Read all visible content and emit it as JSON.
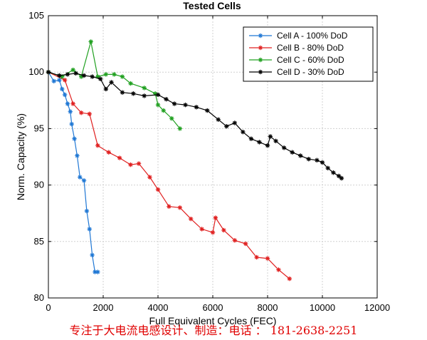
{
  "chart_data": {
    "type": "line",
    "title": "Tested Cells",
    "xlabel": "Full Equivalent Cycles (FEC)",
    "ylabel": "Norm. Capacity (%)",
    "xlim": [
      0,
      12000
    ],
    "ylim": [
      80,
      105
    ],
    "xticks": [
      0,
      2000,
      4000,
      6000,
      8000,
      10000,
      12000
    ],
    "yticks": [
      80,
      85,
      90,
      95,
      100,
      105
    ],
    "grid": true,
    "legend_position": "top-right",
    "marker": "asterisk",
    "series": [
      {
        "name": "Cell A - 100% DoD",
        "color": "#1f77d4",
        "points": [
          [
            0,
            100
          ],
          [
            200,
            99.2
          ],
          [
            400,
            99.3
          ],
          [
            500,
            98.5
          ],
          [
            600,
            98.0
          ],
          [
            700,
            97.2
          ],
          [
            800,
            96.5
          ],
          [
            850,
            95.4
          ],
          [
            950,
            94.1
          ],
          [
            1050,
            92.6
          ],
          [
            1150,
            90.7
          ],
          [
            1300,
            90.4
          ],
          [
            1400,
            87.7
          ],
          [
            1500,
            86.1
          ],
          [
            1600,
            83.8
          ],
          [
            1700,
            82.3
          ],
          [
            1800,
            82.3
          ]
        ]
      },
      {
        "name": "Cell B - 80% DoD",
        "color": "#e02020",
        "points": [
          [
            0,
            100
          ],
          [
            600,
            99.3
          ],
          [
            900,
            97.2
          ],
          [
            1200,
            96.4
          ],
          [
            1500,
            96.3
          ],
          [
            1800,
            93.5
          ],
          [
            2200,
            92.9
          ],
          [
            2600,
            92.4
          ],
          [
            3000,
            91.8
          ],
          [
            3300,
            91.9
          ],
          [
            3700,
            90.7
          ],
          [
            4000,
            89.6
          ],
          [
            4400,
            88.1
          ],
          [
            4800,
            88.0
          ],
          [
            5200,
            87.0
          ],
          [
            5600,
            86.1
          ],
          [
            6000,
            85.8
          ],
          [
            6100,
            87.1
          ],
          [
            6400,
            86.0
          ],
          [
            6800,
            85.1
          ],
          [
            7200,
            84.8
          ],
          [
            7600,
            83.6
          ],
          [
            8000,
            83.5
          ],
          [
            8400,
            82.5
          ],
          [
            8800,
            81.7
          ]
        ]
      },
      {
        "name": "Cell C - 60% DoD",
        "color": "#20a020",
        "points": [
          [
            0,
            100
          ],
          [
            500,
            99.6
          ],
          [
            900,
            100.2
          ],
          [
            1200,
            99.6
          ],
          [
            1550,
            102.7
          ],
          [
            1800,
            99.6
          ],
          [
            2100,
            99.8
          ],
          [
            2400,
            99.8
          ],
          [
            2700,
            99.6
          ],
          [
            3000,
            99.0
          ],
          [
            3500,
            98.6
          ],
          [
            3900,
            98.1
          ],
          [
            4000,
            97.1
          ],
          [
            4200,
            96.6
          ],
          [
            4500,
            95.9
          ],
          [
            4800,
            95.0
          ]
        ]
      },
      {
        "name": "Cell D - 30% DoD",
        "color": "#000000",
        "points": [
          [
            0,
            100
          ],
          [
            400,
            99.7
          ],
          [
            700,
            99.8
          ],
          [
            1000,
            99.9
          ],
          [
            1300,
            99.7
          ],
          [
            1600,
            99.6
          ],
          [
            1900,
            99.4
          ],
          [
            2100,
            98.5
          ],
          [
            2300,
            99.1
          ],
          [
            2700,
            98.2
          ],
          [
            3100,
            98.1
          ],
          [
            3500,
            97.9
          ],
          [
            4000,
            98.0
          ],
          [
            4300,
            97.6
          ],
          [
            4600,
            97.2
          ],
          [
            5000,
            97.1
          ],
          [
            5400,
            96.9
          ],
          [
            5800,
            96.6
          ],
          [
            6200,
            95.8
          ],
          [
            6500,
            95.2
          ],
          [
            6800,
            95.5
          ],
          [
            7100,
            94.7
          ],
          [
            7400,
            94.1
          ],
          [
            7700,
            93.8
          ],
          [
            8000,
            93.5
          ],
          [
            8100,
            94.3
          ],
          [
            8300,
            93.9
          ],
          [
            8600,
            93.3
          ],
          [
            8900,
            92.9
          ],
          [
            9200,
            92.6
          ],
          [
            9500,
            92.3
          ],
          [
            9800,
            92.2
          ],
          [
            10000,
            92.0
          ],
          [
            10200,
            91.5
          ],
          [
            10400,
            91.1
          ],
          [
            10600,
            90.8
          ],
          [
            10700,
            90.6
          ]
        ]
      }
    ]
  },
  "footer_text": "专注于大电流电感设计、制造：电话 ： 181-2638-2251"
}
